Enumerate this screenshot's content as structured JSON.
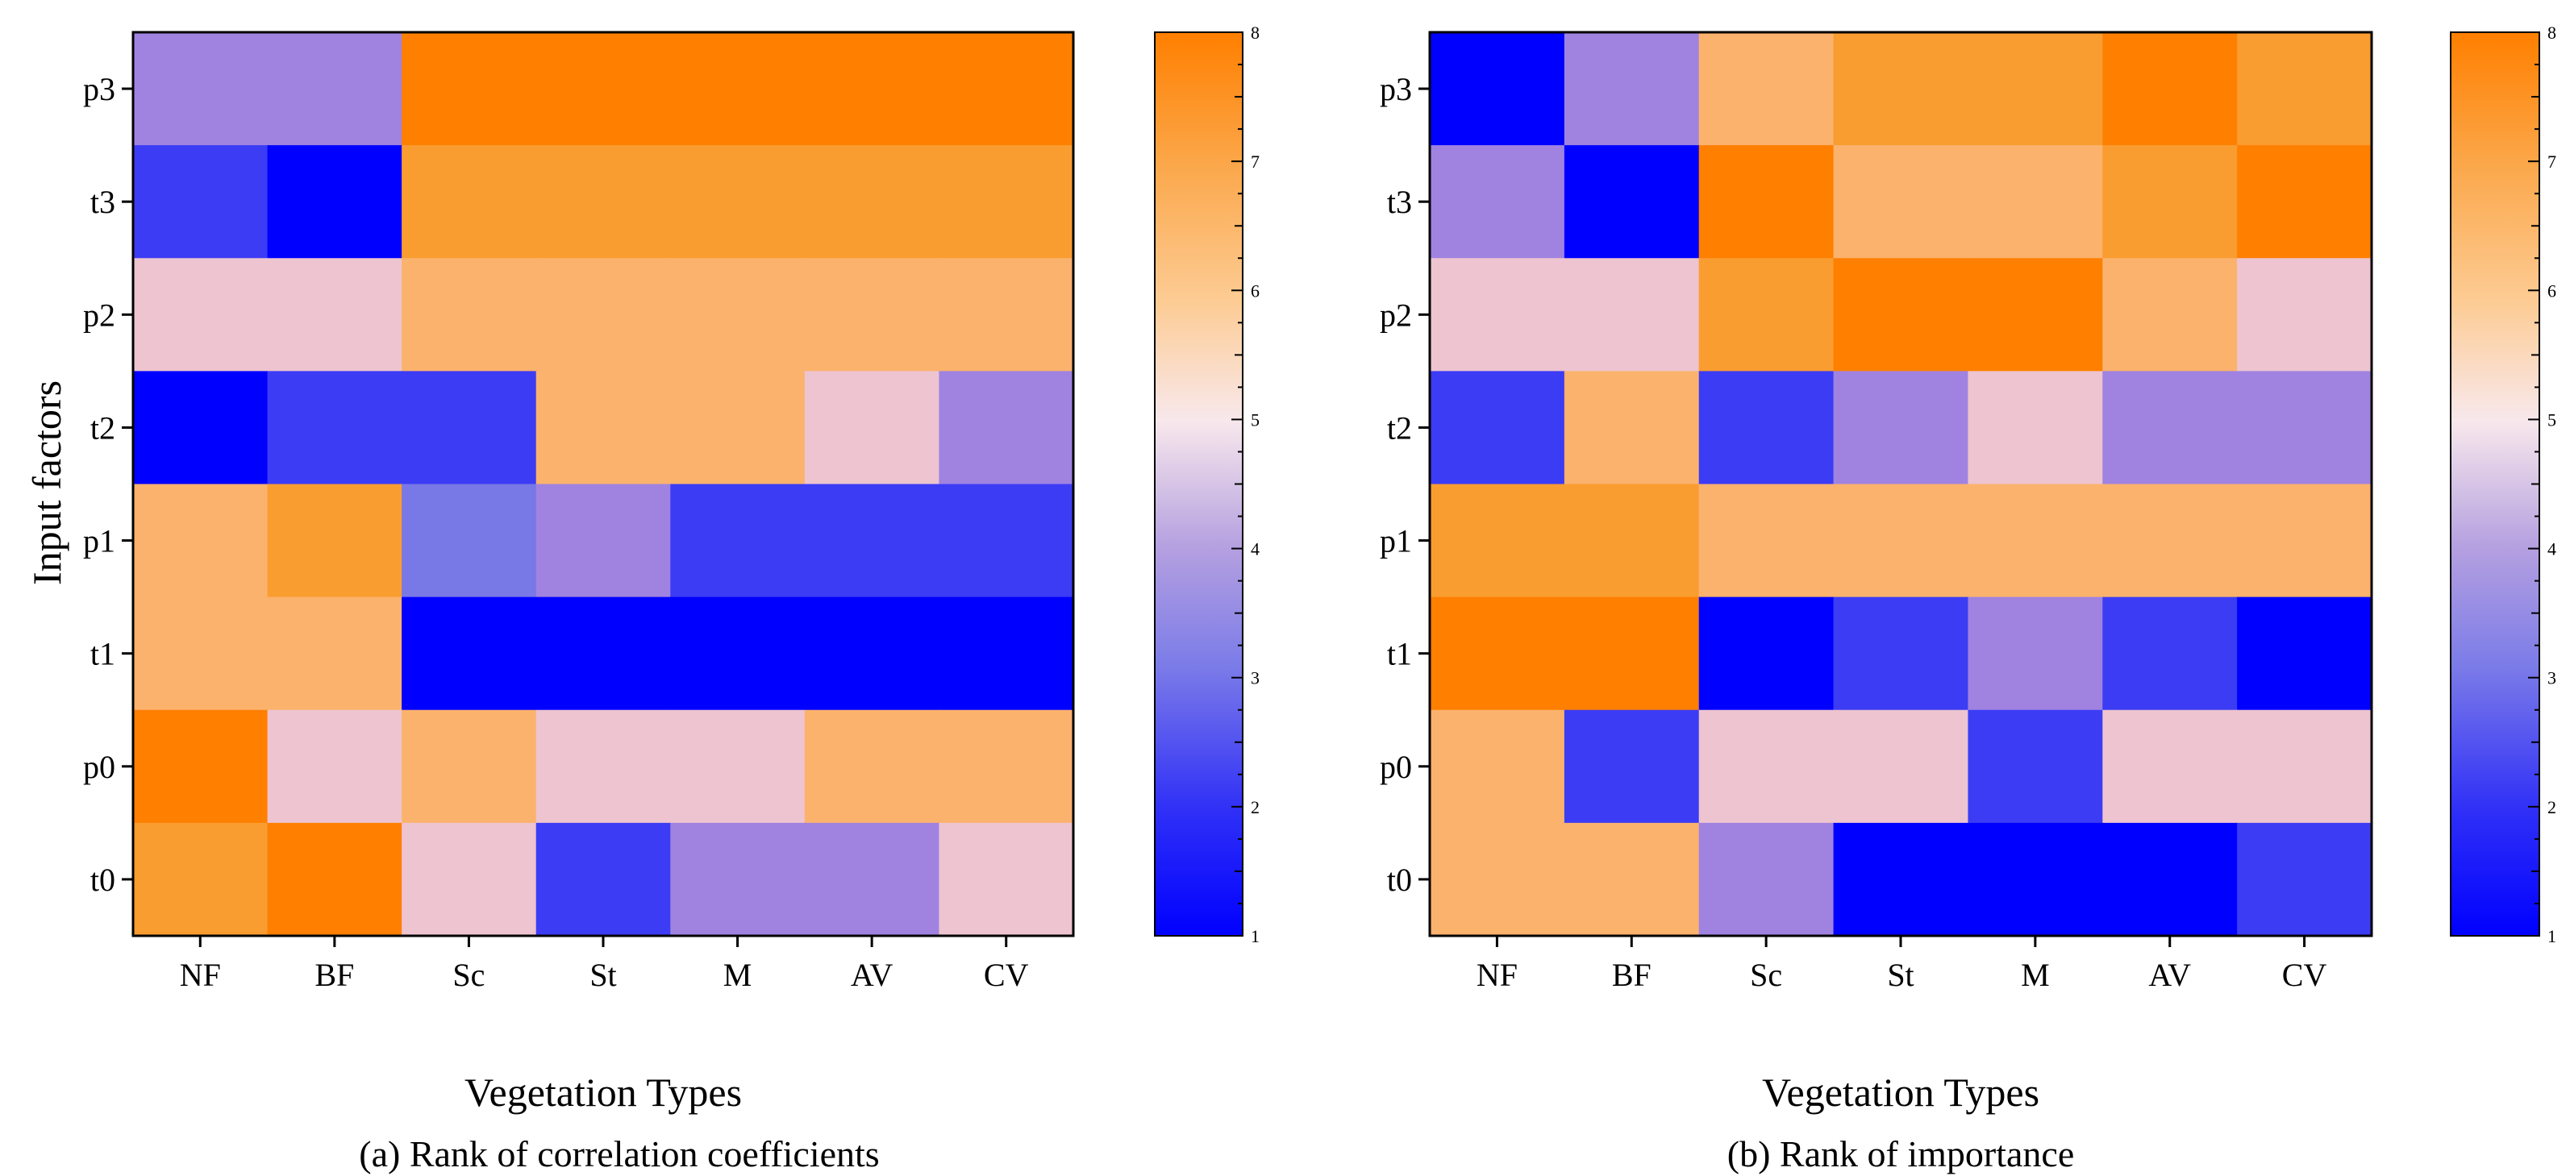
{
  "chart_data": [
    {
      "type": "heatmap",
      "title": "(a) Rank of correlation coefficients",
      "xlabel": "Vegetation Types",
      "ylabel": "Input factors",
      "x_categories": [
        "NF",
        "BF",
        "Sc",
        "St",
        "M",
        "AV",
        "CV"
      ],
      "y_categories": [
        "p3",
        "t3",
        "p2",
        "t2",
        "p1",
        "t1",
        "p0",
        "t0"
      ],
      "values": [
        [
          4,
          4,
          8,
          8,
          8,
          8,
          8
        ],
        [
          2,
          1,
          7,
          7,
          7,
          7,
          7
        ],
        [
          5,
          5,
          6,
          6,
          6,
          6,
          6
        ],
        [
          1,
          2,
          2,
          6,
          6,
          5,
          4
        ],
        [
          6,
          7,
          3,
          4,
          2,
          2,
          2
        ],
        [
          6,
          6,
          1,
          1,
          1,
          1,
          1
        ],
        [
          8,
          5,
          6,
          5,
          5,
          6,
          6
        ],
        [
          7,
          8,
          5,
          2,
          4,
          4,
          5
        ]
      ],
      "colorbar": {
        "min": 1,
        "max": 8,
        "ticks": [
          "1",
          "2",
          "3",
          "4",
          "5",
          "6",
          "7",
          "8"
        ]
      }
    },
    {
      "type": "heatmap",
      "title": "(b) Rank of importance",
      "xlabel": "Vegetation Types",
      "ylabel": "",
      "x_categories": [
        "NF",
        "BF",
        "Sc",
        "St",
        "M",
        "AV",
        "CV"
      ],
      "y_categories": [
        "p3",
        "t3",
        "p2",
        "t2",
        "p1",
        "t1",
        "p0",
        "t0"
      ],
      "values": [
        [
          1,
          4,
          6,
          7,
          7,
          8,
          7
        ],
        [
          4,
          1,
          8,
          6,
          6,
          7,
          8
        ],
        [
          5,
          5,
          7,
          8,
          8,
          6,
          5
        ],
        [
          2,
          6,
          2,
          4,
          5,
          4,
          4
        ],
        [
          7,
          7,
          6,
          6,
          6,
          6,
          6
        ],
        [
          8,
          8,
          1,
          2,
          4,
          2,
          1
        ],
        [
          6,
          2,
          5,
          5,
          2,
          5,
          5
        ],
        [
          6,
          6,
          4,
          1,
          1,
          1,
          2
        ]
      ],
      "colorbar": {
        "min": 1,
        "max": 8,
        "ticks": [
          "1",
          "2",
          "3",
          "4",
          "5",
          "6",
          "7",
          "8"
        ]
      }
    }
  ],
  "colors": {
    "scale": [
      "#0000ff",
      "#3c3cf5",
      "#7878e6",
      "#a083e0",
      "#edc4cf",
      "#f7ecec",
      "#fdd0a1",
      "#fbb26d",
      "#f99d31",
      "#ff7f00"
    ]
  }
}
